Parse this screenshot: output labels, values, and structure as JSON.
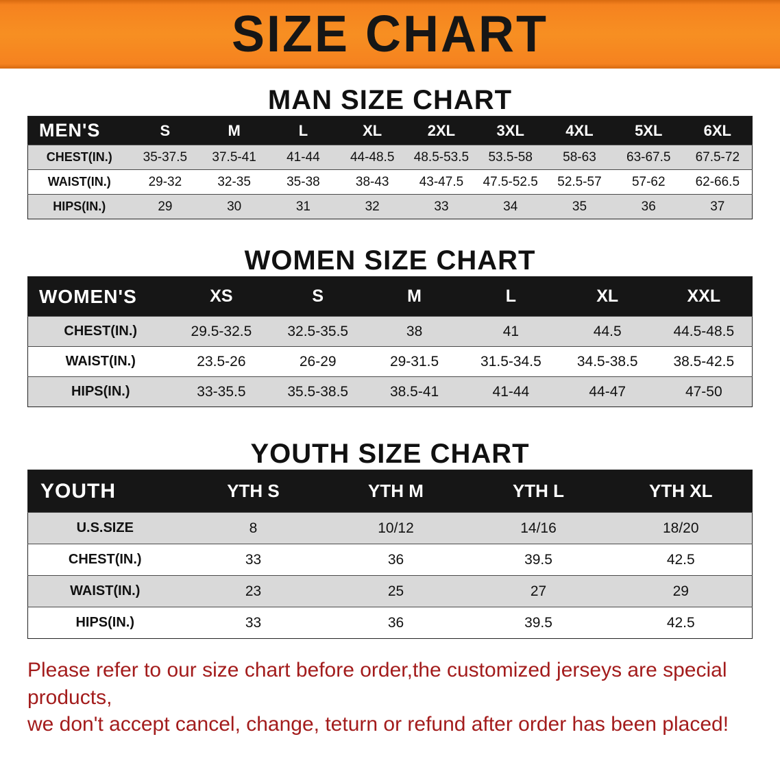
{
  "banner": {
    "title": "SIZE CHART"
  },
  "headings": {
    "man": "MAN SIZE CHART",
    "women": "WOMEN SIZE CHART",
    "youth": "YOUTH SIZE CHART"
  },
  "tables": {
    "men": {
      "corner": "MEN'S",
      "sizes": [
        "S",
        "M",
        "L",
        "XL",
        "2XL",
        "3XL",
        "4XL",
        "5XL",
        "6XL"
      ],
      "rows": [
        {
          "label": "CHEST(IN.)",
          "values": [
            "35-37.5",
            "37.5-41",
            "41-44",
            "44-48.5",
            "48.5-53.5",
            "53.5-58",
            "58-63",
            "63-67.5",
            "67.5-72"
          ]
        },
        {
          "label": "WAIST(IN.)",
          "values": [
            "29-32",
            "32-35",
            "35-38",
            "38-43",
            "43-47.5",
            "47.5-52.5",
            "52.5-57",
            "57-62",
            "62-66.5"
          ]
        },
        {
          "label": "HIPS(IN.)",
          "values": [
            "29",
            "30",
            "31",
            "32",
            "33",
            "34",
            "35",
            "36",
            "37"
          ]
        }
      ]
    },
    "women": {
      "corner": "WOMEN'S",
      "sizes": [
        "XS",
        "S",
        "M",
        "L",
        "XL",
        "XXL"
      ],
      "rows": [
        {
          "label": "CHEST(IN.)",
          "values": [
            "29.5-32.5",
            "32.5-35.5",
            "38",
            "41",
            "44.5",
            "44.5-48.5"
          ]
        },
        {
          "label": "WAIST(IN.)",
          "values": [
            "23.5-26",
            "26-29",
            "29-31.5",
            "31.5-34.5",
            "34.5-38.5",
            "38.5-42.5"
          ]
        },
        {
          "label": "HIPS(IN.)",
          "values": [
            "33-35.5",
            "35.5-38.5",
            "38.5-41",
            "41-44",
            "44-47",
            "47-50"
          ]
        }
      ]
    },
    "youth": {
      "corner": "YOUTH",
      "sizes": [
        "YTH S",
        "YTH M",
        "YTH L",
        "YTH XL"
      ],
      "rows": [
        {
          "label": "U.S.SIZE",
          "values": [
            "8",
            "10/12",
            "14/16",
            "18/20"
          ]
        },
        {
          "label": "CHEST(IN.)",
          "values": [
            "33",
            "36",
            "39.5",
            "42.5"
          ]
        },
        {
          "label": "WAIST(IN.)",
          "values": [
            "23",
            "25",
            "27",
            "29"
          ]
        },
        {
          "label": "HIPS(IN.)",
          "values": [
            "33",
            "36",
            "39.5",
            "42.5"
          ]
        }
      ]
    }
  },
  "disclaimer": {
    "line1": "Please refer to our size chart before order,the customized jerseys are special products,",
    "line2": "we don't accept cancel, change, teturn or refund after order has been placed!"
  },
  "colors": {
    "banner_orange": "#f5821f",
    "header_black": "#161616",
    "row_gray": "#d9d9d9",
    "disclaimer_red": "#a31c1c"
  }
}
